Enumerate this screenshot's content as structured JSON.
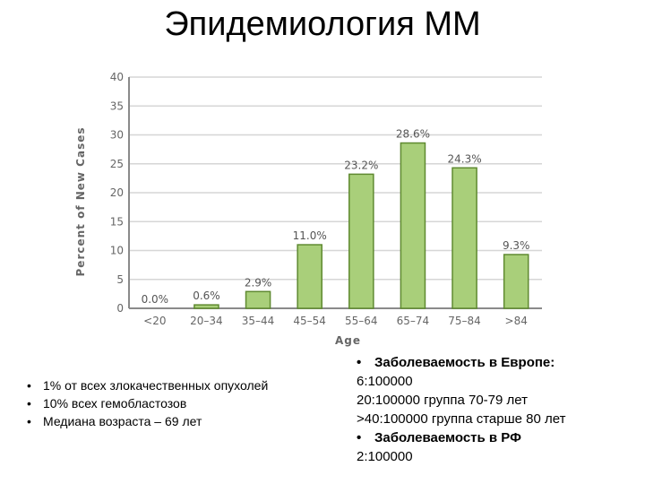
{
  "slide": {
    "title": "Эпидемиология ММ"
  },
  "left_bullets": [
    "1% от всех злокачественных опухолей",
    "10% всех гемобластозов",
    "Медиана возраста – 69 лет"
  ],
  "right_block": {
    "lines": [
      {
        "text": "Заболеваемость в Европе:",
        "bullet": true,
        "bold": true
      },
      {
        "text": "6:100000",
        "bullet": false,
        "bold": false
      },
      {
        "text": "20:100000 группа 70-79 лет",
        "bullet": false,
        "bold": false
      },
      {
        "text": ">40:100000 группа старше 80 лет",
        "bullet": false,
        "bold": false
      },
      {
        "text": "Заболеваемость в РФ",
        "bullet": true,
        "bold": true
      },
      {
        "text": "2:100000",
        "bullet": false,
        "bold": false
      }
    ]
  },
  "chart_data": {
    "type": "bar",
    "categories": [
      "<20",
      "20–34",
      "35–44",
      "45–54",
      "55–64",
      "65–74",
      "75–84",
      ">84"
    ],
    "values": [
      0.0,
      0.6,
      2.9,
      11.0,
      23.2,
      28.6,
      24.3,
      9.3
    ],
    "data_labels": [
      "0.0%",
      "0.6%",
      "2.9%",
      "11.0%",
      "23.2%",
      "28.6%",
      "24.3%",
      "9.3%"
    ],
    "xlabel": "Age",
    "ylabel": "Percent of New Cases",
    "ylim": [
      0,
      40
    ],
    "yticks": [
      0,
      5,
      10,
      15,
      20,
      25,
      30,
      35,
      40
    ],
    "grid": true,
    "colors": {
      "bar_fill": "#a9cf7a",
      "bar_stroke": "#5f8a30",
      "grid": "#d6d6d6",
      "axis": "#8a8a8a"
    }
  }
}
